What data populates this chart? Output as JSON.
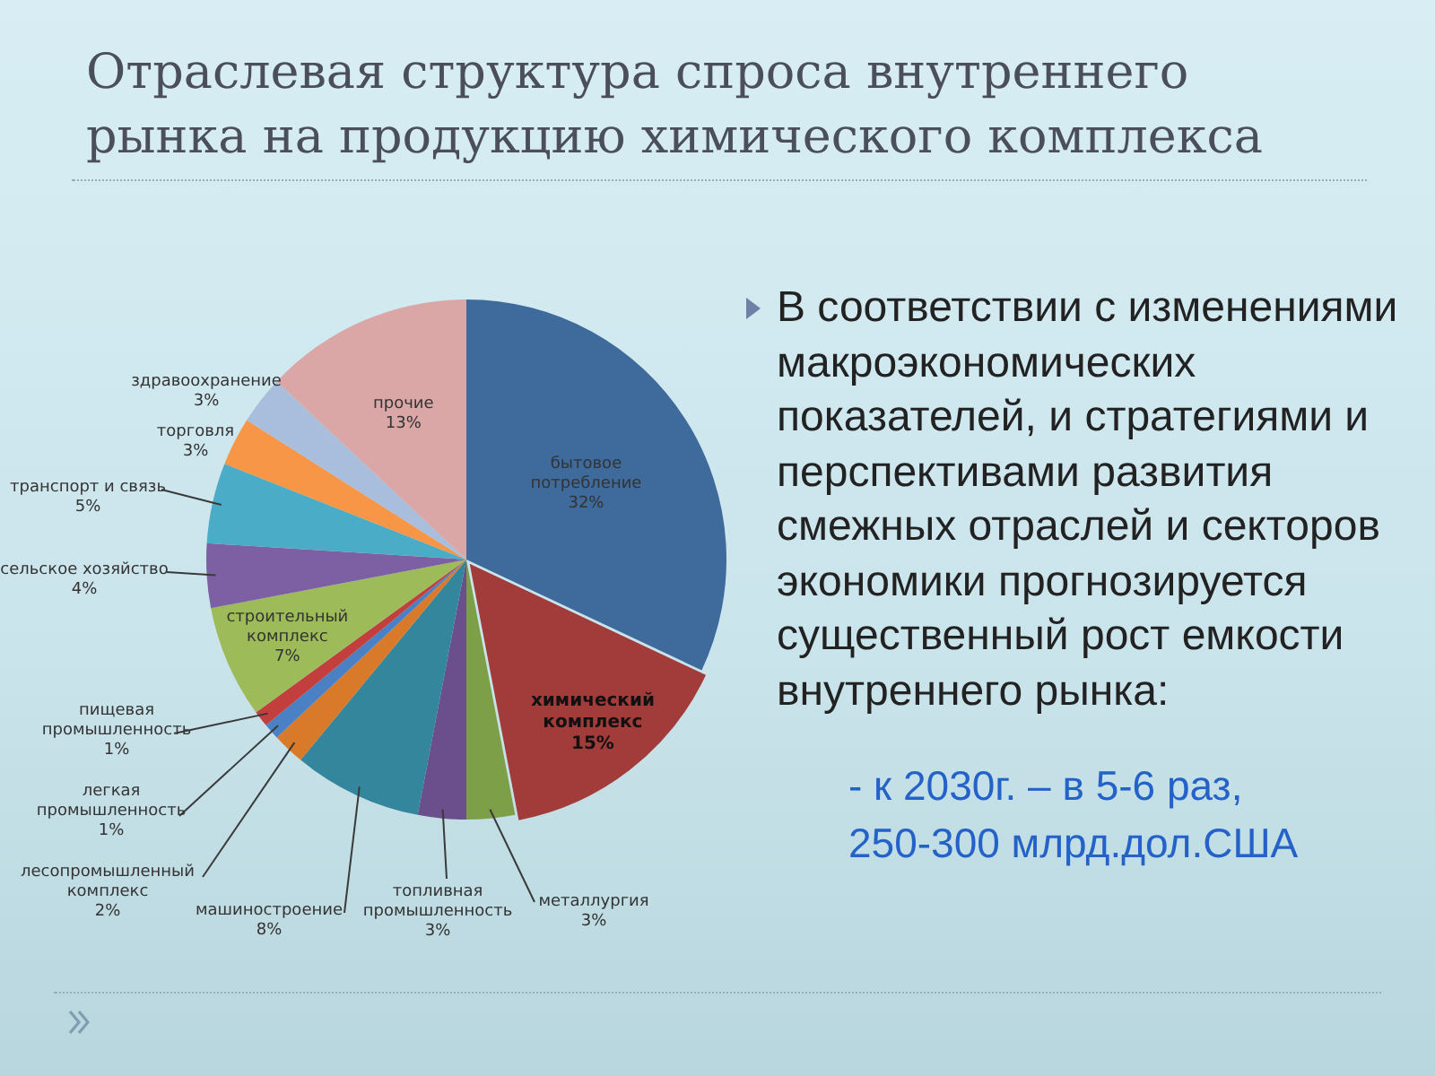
{
  "chart_data": {
    "type": "pie",
    "title": "Отраслевая структура спроса внутреннего рынка на продукцию химического комплекса",
    "categories": [
      "бытовое потребление",
      "химический комплекс",
      "металлургия",
      "топливная промышленность",
      "машиностроение",
      "лесопромышленный комплекс",
      "легкая промышленность",
      "пищевая промышленность",
      "строительный комплекс",
      "сельское хозяйство",
      "транспорт и связь",
      "торговля",
      "здравоохранение",
      "прочие"
    ],
    "values": [
      32,
      15,
      3,
      3,
      8,
      2,
      1,
      1,
      7,
      4,
      5,
      3,
      3,
      13
    ],
    "value_labels": [
      "32%",
      "15%",
      "3%",
      "3%",
      "8%",
      "2%",
      "1%",
      "1%",
      "7%",
      "4%",
      "5%",
      "3%",
      "3%",
      "13%"
    ],
    "colors": [
      "#3e6a9c",
      "#a23c3a",
      "#7d9f48",
      "#6b4f8d",
      "#33869b",
      "#d87a2a",
      "#4a80c4",
      "#c23f3d",
      "#9dbb59",
      "#7d5fa4",
      "#4aacc6",
      "#f79646",
      "#a9bedc",
      "#dba7a6"
    ],
    "annotations": [
      "В соответствии с изменениями макроэкономических показателей, и стратегиями и перспективами развития смежных отраслей и секторов экономики прогнозируется существенный рост емкости внутреннего рынка:",
      "- к 2030г. – в 5-6 раз,",
      "250-300 млрд.дол.США"
    ]
  }
}
